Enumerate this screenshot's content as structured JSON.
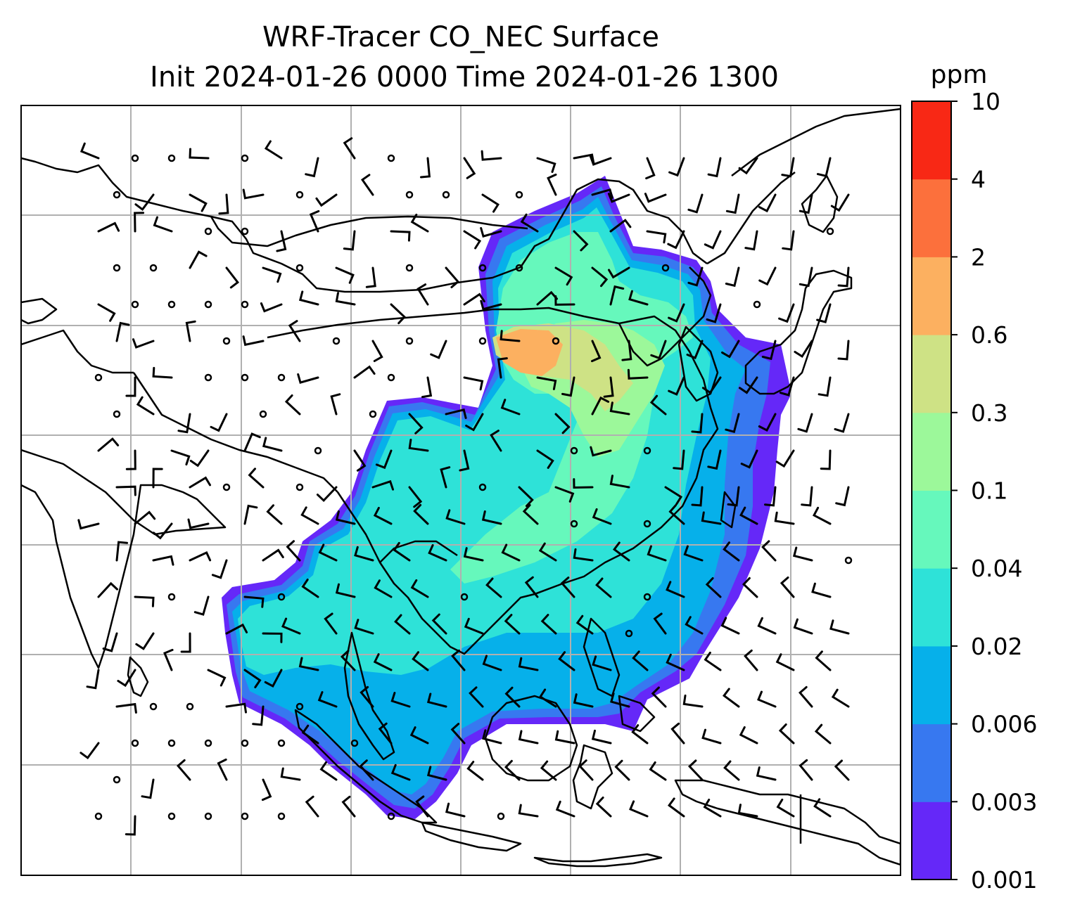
{
  "title": {
    "line1": "WRF-Tracer CO_NEC Surface",
    "line2": "Init 2024-01-26 0000 Time 2024-01-26 1300"
  },
  "colorbar": {
    "unit": "ppm",
    "ticks": [
      "0.001",
      "0.003",
      "0.006",
      "0.02",
      "0.04",
      "0.1",
      "0.3",
      "0.6",
      "2",
      "4",
      "10"
    ],
    "colors": [
      "#6528f8",
      "#3778f0",
      "#06b0ea",
      "#2ee2d8",
      "#66f8bc",
      "#9cf89a",
      "#cee285",
      "#fcb060",
      "#fc703c",
      "#f82815"
    ]
  },
  "map": {
    "field": "CO_NEC surface concentration",
    "wind_symbols": "barbs",
    "gridlines": true
  }
}
